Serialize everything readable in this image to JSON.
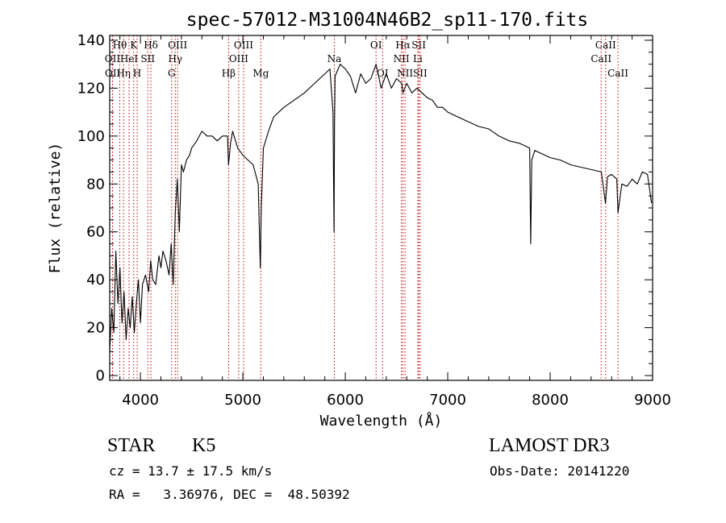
{
  "chart_data": {
    "type": "line",
    "title": "spec-57012-M31004N46B2_sp11-170.fits",
    "xlabel": "Wavelength (Å)",
    "ylabel": "Flux (relative)",
    "xlim": [
      3700,
      9000
    ],
    "ylim": [
      -2,
      142
    ],
    "x_ticks": [
      4000,
      5000,
      6000,
      7000,
      8000,
      9000
    ],
    "y_ticks": [
      0,
      20,
      40,
      60,
      80,
      100,
      120,
      140
    ],
    "grid": false,
    "series": [
      {
        "name": "spectrum",
        "x": [
          3700,
          3720,
          3740,
          3760,
          3780,
          3800,
          3820,
          3840,
          3860,
          3880,
          3900,
          3920,
          3940,
          3960,
          3980,
          4000,
          4020,
          4050,
          4080,
          4100,
          4120,
          4150,
          4180,
          4200,
          4220,
          4250,
          4280,
          4300,
          4320,
          4340,
          4360,
          4380,
          4400,
          4420,
          4450,
          4480,
          4500,
          4550,
          4600,
          4650,
          4700,
          4750,
          4800,
          4850,
          4860,
          4880,
          4900,
          4950,
          5000,
          5050,
          5100,
          5150,
          5170,
          5180,
          5200,
          5250,
          5300,
          5400,
          5500,
          5600,
          5700,
          5800,
          5850,
          5880,
          5890,
          5895,
          5900,
          5950,
          6000,
          6050,
          6100,
          6150,
          6200,
          6250,
          6300,
          6350,
          6400,
          6450,
          6500,
          6550,
          6563,
          6600,
          6650,
          6700,
          6750,
          6800,
          6850,
          6900,
          6950,
          7000,
          7100,
          7200,
          7300,
          7400,
          7500,
          7600,
          7700,
          7750,
          7800,
          7810,
          7820,
          7850,
          7900,
          8000,
          8100,
          8200,
          8300,
          8400,
          8500,
          8540,
          8560,
          8600,
          8650,
          8662,
          8700,
          8750,
          8800,
          8850,
          8900,
          8950,
          8990
        ],
        "y": [
          10,
          28,
          18,
          52,
          30,
          45,
          22,
          35,
          15,
          28,
          20,
          33,
          18,
          30,
          40,
          22,
          38,
          42,
          35,
          48,
          40,
          38,
          50,
          45,
          52,
          48,
          42,
          55,
          38,
          68,
          82,
          60,
          88,
          85,
          90,
          92,
          95,
          98,
          102,
          100,
          100,
          98,
          100,
          100,
          88,
          97,
          102,
          95,
          92,
          90,
          88,
          80,
          45,
          70,
          95,
          102,
          108,
          112,
          115,
          118,
          122,
          126,
          128,
          110,
          60,
          105,
          125,
          130,
          128,
          125,
          118,
          126,
          122,
          124,
          130,
          120,
          126,
          120,
          124,
          122,
          118,
          122,
          118,
          120,
          118,
          116,
          115,
          112,
          112,
          110,
          108,
          106,
          104,
          103,
          100,
          98,
          97,
          96,
          95,
          55,
          90,
          94,
          93,
          91,
          90,
          88,
          87,
          86,
          85,
          72,
          83,
          84,
          82,
          68,
          80,
          79,
          82,
          80,
          85,
          84,
          72
        ]
      }
    ],
    "line_markers": [
      {
        "label": "Hθ",
        "wavelength": 3798,
        "row": 0
      },
      {
        "label": "OII",
        "wavelength": 3727,
        "row": 1
      },
      {
        "label": "OII",
        "wavelength": 3729,
        "row": 2
      },
      {
        "label": "Hη",
        "wavelength": 3835,
        "row": 2
      },
      {
        "label": "HeI",
        "wavelength": 3889,
        "row": 1
      },
      {
        "label": "K",
        "wavelength": 3934,
        "row": 0
      },
      {
        "label": "H",
        "wavelength": 3968,
        "row": 2
      },
      {
        "label": "SII",
        "wavelength": 4072,
        "row": 1
      },
      {
        "label": "Hδ",
        "wavelength": 4102,
        "row": 0
      },
      {
        "label": "OIII",
        "wavelength": 4363,
        "row": 0
      },
      {
        "label": "Hγ",
        "wavelength": 4340,
        "row": 1
      },
      {
        "label": "G",
        "wavelength": 4305,
        "row": 2
      },
      {
        "label": "Hβ",
        "wavelength": 4861,
        "row": 2
      },
      {
        "label": "OIII",
        "wavelength": 5007,
        "row": 0
      },
      {
        "label": "OIII",
        "wavelength": 4959,
        "row": 1
      },
      {
        "label": "Mg",
        "wavelength": 5175,
        "row": 2
      },
      {
        "label": "Na",
        "wavelength": 5893,
        "row": 1
      },
      {
        "label": "OI",
        "wavelength": 6300,
        "row": 0
      },
      {
        "label": "OI",
        "wavelength": 6364,
        "row": 2
      },
      {
        "label": "Hα",
        "wavelength": 6563,
        "row": 0
      },
      {
        "label": "NII",
        "wavelength": 6548,
        "row": 1
      },
      {
        "label": "NII",
        "wavelength": 6583,
        "row": 2
      },
      {
        "label": "SII",
        "wavelength": 6717,
        "row": 0
      },
      {
        "label": "Li",
        "wavelength": 6708,
        "row": 1
      },
      {
        "label": "SII",
        "wavelength": 6731,
        "row": 2
      },
      {
        "label": "CaII",
        "wavelength": 8542,
        "row": 0
      },
      {
        "label": "CaII",
        "wavelength": 8498,
        "row": 1
      },
      {
        "label": "CaII",
        "wavelength": 8662,
        "row": 2
      }
    ]
  },
  "info": {
    "object_class": "STAR",
    "subclass": "K5",
    "survey": "LAMOST DR3",
    "redshift_line": "cz = 13.7 ± 17.5 km/s",
    "obs_date_line": "Obs-Date: 20141220",
    "coords_line": "RA =   3.36976, DEC =  48.50392"
  }
}
